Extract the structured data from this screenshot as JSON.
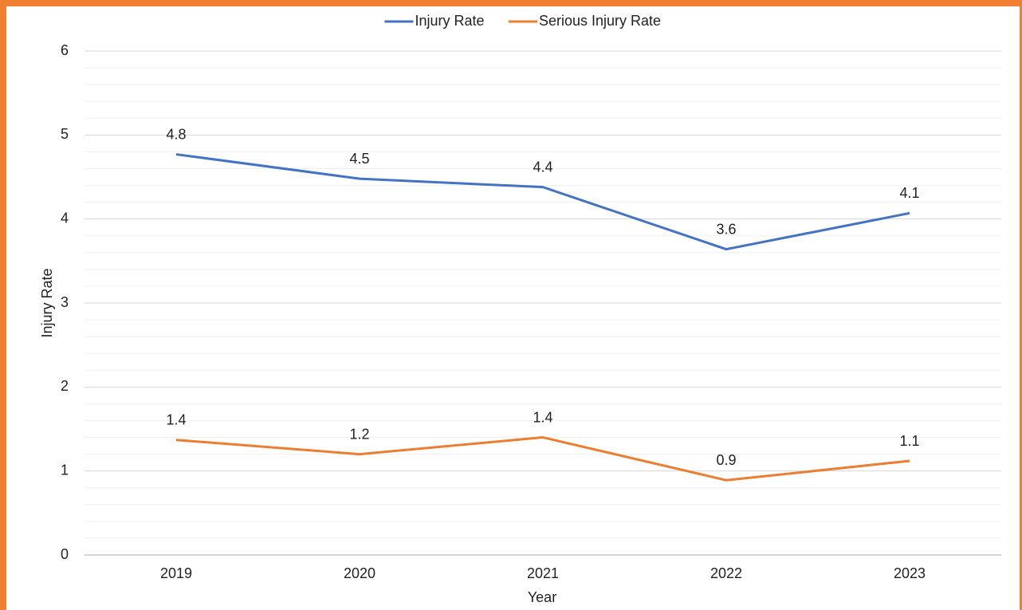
{
  "chart_data": {
    "type": "line",
    "x_label": "Year",
    "y_label": "Injury Rate",
    "categories": [
      "2019",
      "2020",
      "2021",
      "2022",
      "2023"
    ],
    "series": [
      {
        "name": "Injury Rate",
        "color": "#4472c4",
        "values": [
          4.77,
          4.48,
          4.38,
          3.64,
          4.07
        ],
        "value_labels": [
          "4.8",
          "4.5",
          "4.4",
          "3.6",
          "4.1"
        ]
      },
      {
        "name": "Serious Injury Rate",
        "color": "#ed7d31",
        "values": [
          1.37,
          1.2,
          1.4,
          0.89,
          1.12
        ],
        "value_labels": [
          "1.4",
          "1.2",
          "1.4",
          "0.9",
          "1.1"
        ]
      }
    ],
    "ylim": [
      0,
      6
    ],
    "yticks": [
      0,
      1,
      2,
      3,
      4,
      5,
      6
    ],
    "yminor": [
      0.2,
      0.4,
      0.6,
      0.8,
      1.2,
      1.4,
      1.6,
      1.8,
      2.2,
      2.4,
      2.6,
      2.8,
      3.2,
      3.4,
      3.6,
      3.8,
      4.2,
      4.4,
      4.6,
      4.8,
      5.2,
      5.4,
      5.6,
      5.8
    ],
    "grid": true,
    "legend": "top"
  }
}
